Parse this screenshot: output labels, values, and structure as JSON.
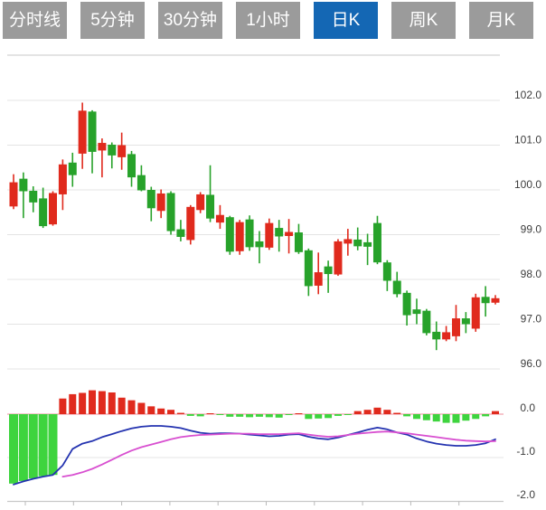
{
  "toolbar": {
    "tabs": [
      {
        "key": "timeshare",
        "label": "分时线",
        "active": false
      },
      {
        "key": "5min",
        "label": "5分钟",
        "active": false
      },
      {
        "key": "30min",
        "label": "30分钟",
        "active": false
      },
      {
        "key": "1hour",
        "label": "1小时",
        "active": false
      },
      {
        "key": "daily-k",
        "label": "日K",
        "active": true
      },
      {
        "key": "weekly-k",
        "label": "周K",
        "active": false
      },
      {
        "key": "monthly-k",
        "label": "月K",
        "active": false
      }
    ]
  },
  "colors": {
    "tab_bg": "#9b9b9b",
    "tab_active_bg": "#1467b4",
    "tab_text": "#ffffff",
    "candle_up": "#e02a1d",
    "candle_down": "#27a22a",
    "macd_bar_pos": "#e02a1d",
    "macd_bar_neg": "#3ed43e",
    "dif_line": "#2433b0",
    "dea_line": "#d84fd0",
    "zero_line": "#f2a4ae",
    "grid": "#e4e4e4",
    "axis": "#c9c9c9",
    "tick": "#b9b9b9",
    "label_text": "#3d3d3d"
  },
  "chart_data": [
    {
      "type": "candlestick",
      "title": "",
      "xlabel": "",
      "ylabel": "",
      "grid": true,
      "legend_position": "none",
      "y_ticks": [
        "102.0",
        "101.0",
        "100.0",
        "99.0",
        "98.0",
        "97.0",
        "96.0"
      ],
      "ylim": [
        95.8,
        103.0
      ],
      "candle_format": [
        "open",
        "close",
        "high",
        "low"
      ],
      "up_means": "close >= open (red)",
      "candles": [
        [
          99.63,
          100.17,
          100.35,
          99.57
        ],
        [
          100.25,
          99.97,
          100.39,
          99.37
        ],
        [
          99.98,
          99.72,
          100.08,
          99.5
        ],
        [
          99.81,
          99.19,
          100.05,
          99.15
        ],
        [
          99.23,
          99.93,
          99.97,
          99.2
        ],
        [
          99.9,
          100.57,
          100.68,
          99.55
        ],
        [
          100.61,
          100.33,
          100.83,
          100.07
        ],
        [
          100.81,
          101.77,
          101.95,
          100.47
        ],
        [
          101.75,
          100.85,
          101.78,
          100.37
        ],
        [
          100.88,
          101.05,
          101.15,
          100.28
        ],
        [
          101.01,
          100.77,
          101.06,
          100.48
        ],
        [
          100.73,
          101.0,
          101.28,
          100.45
        ],
        [
          100.8,
          100.28,
          100.87,
          100.07
        ],
        [
          100.33,
          99.99,
          100.55,
          99.97
        ],
        [
          100.0,
          99.59,
          100.07,
          99.3
        ],
        [
          99.53,
          99.92,
          100.01,
          99.37
        ],
        [
          99.93,
          99.08,
          99.97,
          99.0
        ],
        [
          99.12,
          98.95,
          99.33,
          98.85
        ],
        [
          98.88,
          99.62,
          99.66,
          98.78
        ],
        [
          99.55,
          99.9,
          99.95,
          99.48
        ],
        [
          99.89,
          99.36,
          100.55,
          99.28
        ],
        [
          99.27,
          99.44,
          99.66,
          99.13
        ],
        [
          99.39,
          98.62,
          99.42,
          98.55
        ],
        [
          98.63,
          99.28,
          99.33,
          98.55
        ],
        [
          99.34,
          98.72,
          99.43,
          98.64
        ],
        [
          98.85,
          98.72,
          99.08,
          98.36
        ],
        [
          98.71,
          99.26,
          99.36,
          98.66
        ],
        [
          99.15,
          98.96,
          99.33,
          98.62
        ],
        [
          98.97,
          99.06,
          99.35,
          98.58
        ],
        [
          99.05,
          98.61,
          99.24,
          98.57
        ],
        [
          98.65,
          97.85,
          98.69,
          97.63
        ],
        [
          97.86,
          98.16,
          98.6,
          97.67
        ],
        [
          98.29,
          98.12,
          98.42,
          97.7
        ],
        [
          98.11,
          98.85,
          98.9,
          98.08
        ],
        [
          98.8,
          98.9,
          99.13,
          98.53
        ],
        [
          98.89,
          98.74,
          99.16,
          98.65
        ],
        [
          98.83,
          98.73,
          99.02,
          98.32
        ],
        [
          99.26,
          98.38,
          99.42,
          98.34
        ],
        [
          98.38,
          97.97,
          98.43,
          97.74
        ],
        [
          97.97,
          97.67,
          98.17,
          97.6
        ],
        [
          97.7,
          97.2,
          97.75,
          96.97
        ],
        [
          97.33,
          97.23,
          97.57,
          97.0
        ],
        [
          97.3,
          96.8,
          97.34,
          96.75
        ],
        [
          96.83,
          96.66,
          97.06,
          96.42
        ],
        [
          96.66,
          96.82,
          96.96,
          96.62
        ],
        [
          96.73,
          97.13,
          97.43,
          96.62
        ],
        [
          97.13,
          97.0,
          97.27,
          96.8
        ],
        [
          96.9,
          97.6,
          97.68,
          96.83
        ],
        [
          97.61,
          97.47,
          97.85,
          97.17
        ],
        [
          97.48,
          97.58,
          97.65,
          97.44
        ]
      ]
    },
    {
      "type": "macd",
      "title": "",
      "grid": true,
      "y_ticks": [
        "0.0",
        "-1.0",
        "-2.0"
      ],
      "ylim": [
        -2.1,
        0.8
      ],
      "x_tick_count": 10,
      "histogram": [
        -1.6,
        -1.54,
        -1.48,
        -1.43,
        -1.4,
        0.36,
        0.46,
        0.49,
        0.55,
        0.53,
        0.5,
        0.38,
        0.32,
        0.26,
        0.18,
        0.13,
        0.1,
        0.03,
        -0.04,
        -0.05,
        0.02,
        -0.01,
        -0.06,
        -0.06,
        -0.07,
        -0.06,
        -0.07,
        -0.08,
        -0.01,
        0.02,
        -0.11,
        -0.1,
        -0.09,
        -0.04,
        -0.01,
        0.07,
        0.1,
        0.15,
        0.1,
        0.03,
        -0.05,
        -0.11,
        -0.14,
        -0.17,
        -0.2,
        -0.2,
        -0.15,
        -0.11,
        -0.05,
        0.07
      ],
      "dif": [
        -1.62,
        -1.55,
        -1.49,
        -1.44,
        -1.4,
        -1.18,
        -0.8,
        -0.68,
        -0.62,
        -0.53,
        -0.46,
        -0.39,
        -0.33,
        -0.29,
        -0.27,
        -0.27,
        -0.29,
        -0.32,
        -0.38,
        -0.43,
        -0.45,
        -0.44,
        -0.44,
        -0.45,
        -0.47,
        -0.49,
        -0.51,
        -0.5,
        -0.47,
        -0.46,
        -0.52,
        -0.56,
        -0.58,
        -0.54,
        -0.48,
        -0.42,
        -0.36,
        -0.31,
        -0.35,
        -0.42,
        -0.47,
        -0.56,
        -0.63,
        -0.68,
        -0.71,
        -0.73,
        -0.73,
        -0.71,
        -0.67,
        -0.58
      ],
      "dea": [
        null,
        null,
        null,
        null,
        null,
        -1.44,
        -1.4,
        -1.34,
        -1.26,
        -1.16,
        -1.05,
        -0.94,
        -0.84,
        -0.76,
        -0.7,
        -0.64,
        -0.58,
        -0.53,
        -0.5,
        -0.48,
        -0.47,
        -0.46,
        -0.45,
        -0.45,
        -0.45,
        -0.46,
        -0.46,
        -0.46,
        -0.45,
        -0.44,
        -0.47,
        -0.5,
        -0.52,
        -0.51,
        -0.48,
        -0.45,
        -0.43,
        -0.41,
        -0.4,
        -0.42,
        -0.44,
        -0.47,
        -0.5,
        -0.53,
        -0.56,
        -0.59,
        -0.61,
        -0.62,
        -0.63,
        -0.62
      ]
    }
  ]
}
